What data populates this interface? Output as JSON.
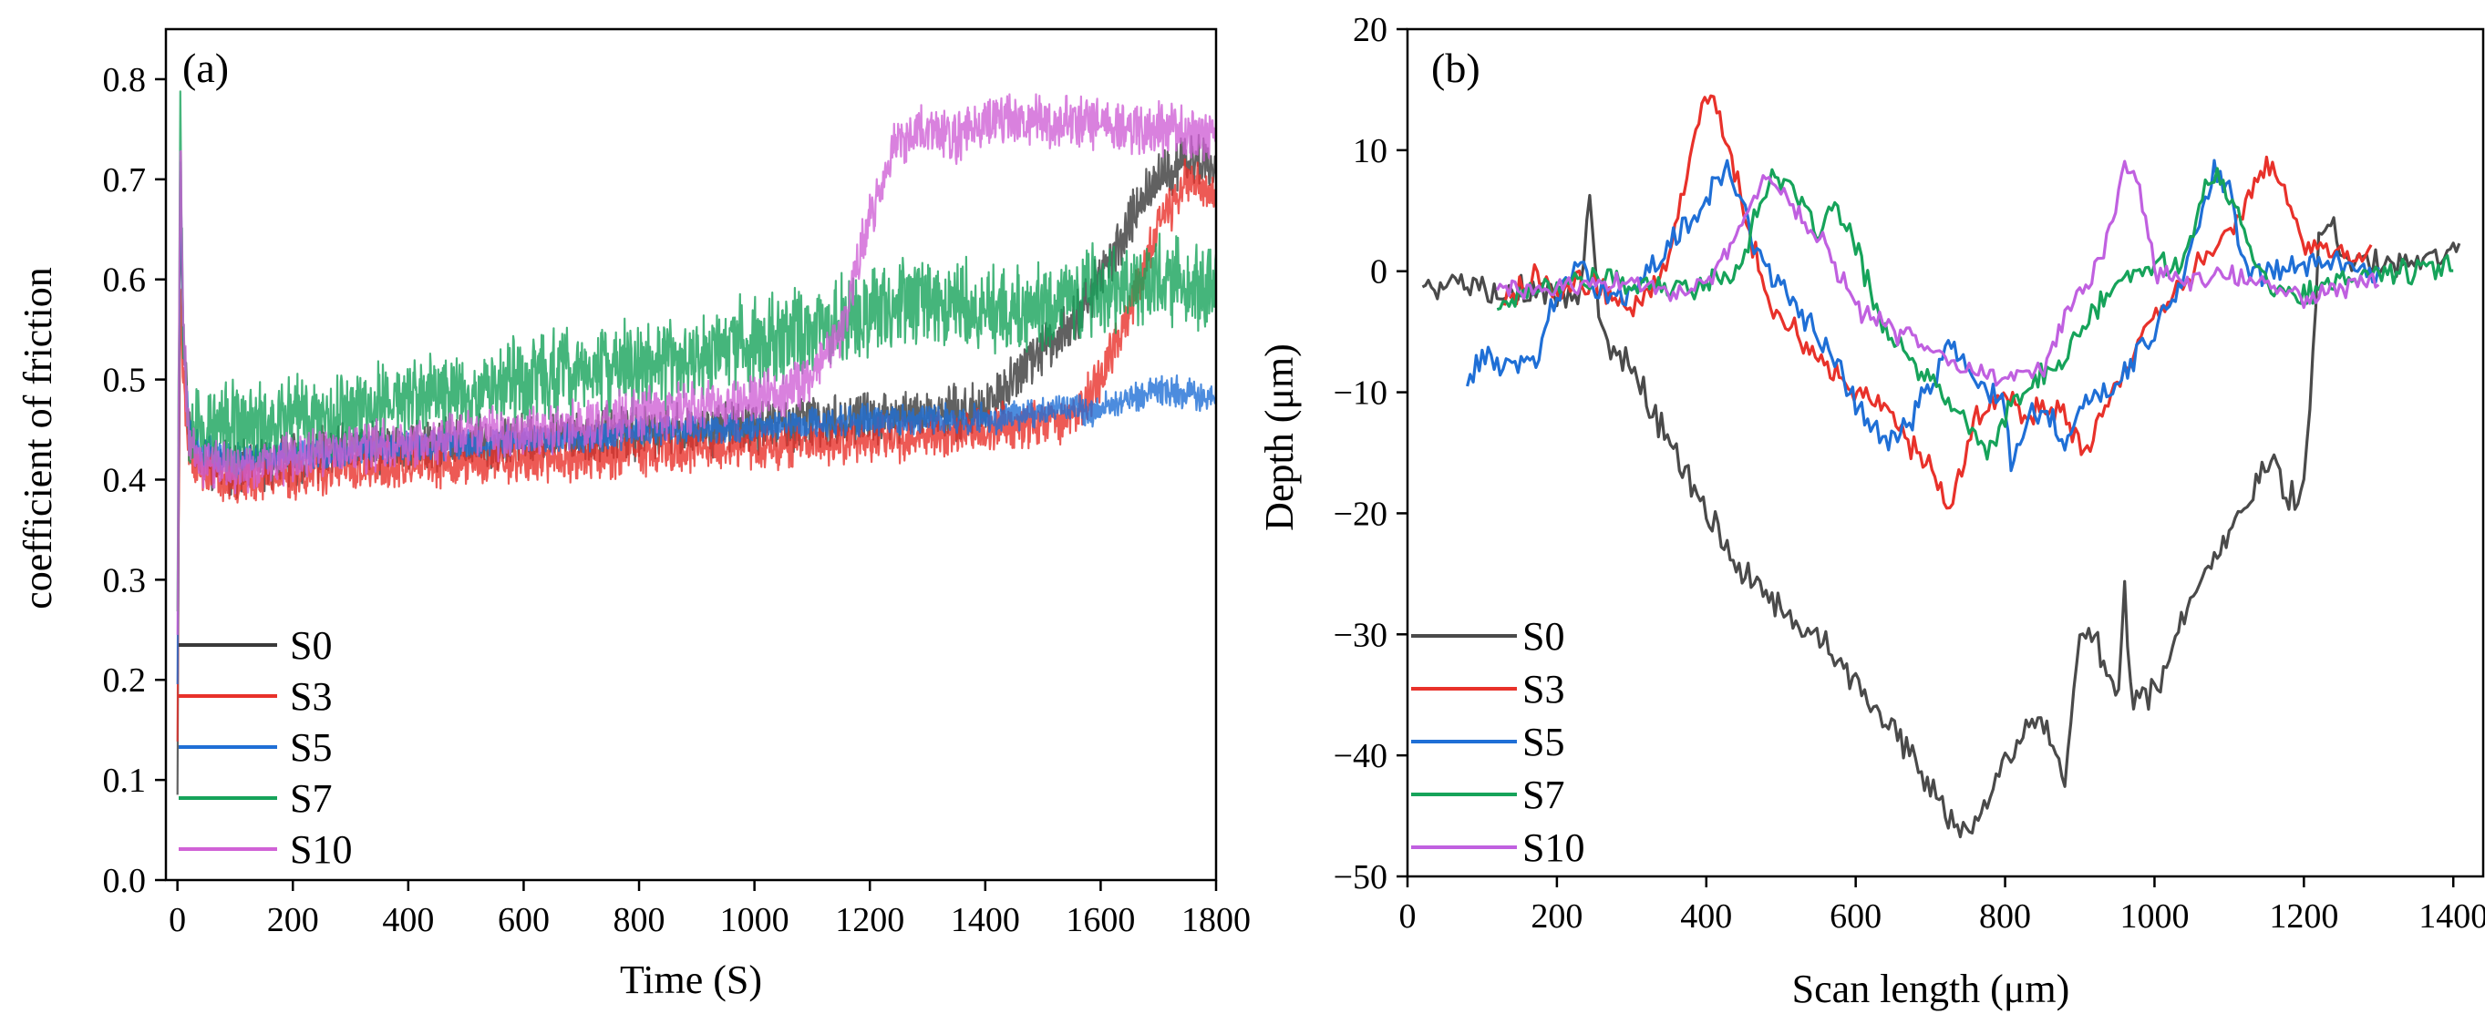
{
  "figure": {
    "panels": [
      "(a)",
      "(b)"
    ]
  },
  "chart_data": [
    {
      "type": "line",
      "panel": "(a)",
      "xlabel": "Time (S)",
      "ylabel": "coefficient of friction",
      "xlim": [
        -20,
        1800
      ],
      "ylim": [
        0.0,
        0.85
      ],
      "xticks": [
        0,
        200,
        400,
        600,
        800,
        1000,
        1200,
        1400,
        1600,
        1800
      ],
      "xtick_labels": [
        "0",
        "200",
        "400",
        "600",
        "800",
        "1000",
        "1200",
        "1400",
        "1600",
        "1800"
      ],
      "yticks": [
        0.0,
        0.1,
        0.2,
        0.3,
        0.4,
        0.5,
        0.6,
        0.7,
        0.8
      ],
      "ytick_labels": [
        "0.0",
        "0.1",
        "0.2",
        "0.3",
        "0.4",
        "0.5",
        "0.6",
        "0.7",
        "0.8"
      ],
      "legend_position": "bottom-left",
      "series": [
        {
          "name": "S0",
          "color": "#3a3a3a",
          "noise": 0.02,
          "seed": 11,
          "x": [
            0,
            5,
            10,
            20,
            40,
            100,
            300,
            600,
            900,
            1200,
            1400,
            1450,
            1500,
            1550,
            1600,
            1650,
            1700,
            1750,
            1800
          ],
          "y": [
            0.1,
            0.7,
            0.55,
            0.45,
            0.42,
            0.41,
            0.43,
            0.44,
            0.45,
            0.46,
            0.47,
            0.5,
            0.53,
            0.56,
            0.6,
            0.66,
            0.7,
            0.72,
            0.72
          ]
        },
        {
          "name": "S3",
          "color": "#e8312a",
          "noise": 0.018,
          "seed": 23,
          "x": [
            0,
            5,
            10,
            20,
            40,
            100,
            300,
            600,
            900,
            1200,
            1400,
            1500,
            1550,
            1600,
            1650,
            1700,
            1750,
            1800
          ],
          "y": [
            0.15,
            0.6,
            0.5,
            0.43,
            0.41,
            0.4,
            0.41,
            0.42,
            0.43,
            0.44,
            0.45,
            0.46,
            0.46,
            0.5,
            0.57,
            0.65,
            0.7,
            0.68
          ]
        },
        {
          "name": "S5",
          "color": "#1f6fd6",
          "noise": 0.012,
          "seed": 37,
          "x": [
            0,
            5,
            10,
            20,
            40,
            100,
            300,
            600,
            900,
            1200,
            1400,
            1500,
            1600,
            1700,
            1800
          ],
          "y": [
            0.2,
            0.72,
            0.55,
            0.45,
            0.43,
            0.42,
            0.43,
            0.44,
            0.45,
            0.46,
            0.46,
            0.47,
            0.47,
            0.49,
            0.48
          ]
        },
        {
          "name": "S7",
          "color": "#16a35a",
          "noise": 0.035,
          "seed": 53,
          "x": [
            0,
            5,
            10,
            20,
            40,
            100,
            300,
            600,
            900,
            1000,
            1100,
            1200,
            1300,
            1400,
            1500,
            1600,
            1700,
            1800
          ],
          "y": [
            0.3,
            0.78,
            0.55,
            0.46,
            0.45,
            0.45,
            0.47,
            0.5,
            0.52,
            0.54,
            0.55,
            0.57,
            0.58,
            0.57,
            0.57,
            0.59,
            0.6,
            0.59
          ]
        },
        {
          "name": "S10",
          "color": "#d062d6",
          "noise": 0.02,
          "seed": 71,
          "x": [
            0,
            5,
            10,
            20,
            40,
            100,
            300,
            600,
            900,
            1000,
            1100,
            1150,
            1200,
            1250,
            1300,
            1350,
            1400,
            1500,
            1600,
            1700,
            1800
          ],
          "y": [
            0.25,
            0.75,
            0.55,
            0.44,
            0.42,
            0.41,
            0.43,
            0.45,
            0.47,
            0.48,
            0.5,
            0.55,
            0.66,
            0.74,
            0.75,
            0.74,
            0.76,
            0.76,
            0.755,
            0.75,
            0.745
          ]
        }
      ]
    },
    {
      "type": "line",
      "panel": "(b)",
      "xlabel": "Scan length (μm)",
      "ylabel": "Depth (μm)",
      "xlim": [
        0,
        1440
      ],
      "ylim": [
        -50,
        20
      ],
      "xticks": [
        0,
        200,
        400,
        600,
        800,
        1000,
        1200,
        1400
      ],
      "xtick_labels": [
        "0",
        "200",
        "400",
        "600",
        "800",
        "1000",
        "1200",
        "1400"
      ],
      "yticks": [
        -50,
        -40,
        -30,
        -20,
        -10,
        0,
        10,
        20
      ],
      "ytick_labels": [
        "−50",
        "−40",
        "−30",
        "−20",
        "−10",
        "0",
        "10",
        "20"
      ],
      "legend_position": "bottom-left",
      "series": [
        {
          "name": "S0",
          "color": "#4a4a4a",
          "noise": 1.0,
          "seed": 5,
          "x": [
            20,
            100,
            180,
            230,
            245,
            255,
            270,
            300,
            350,
            400,
            450,
            500,
            550,
            600,
            650,
            700,
            740,
            760,
            800,
            850,
            880,
            900,
            920,
            950,
            960,
            970,
            1000,
            1050,
            1100,
            1140,
            1160,
            1180,
            1200,
            1210,
            1220,
            1230,
            1260,
            1300,
            1350,
            1410
          ],
          "y": [
            -1,
            -1.3,
            -1.8,
            -2,
            7,
            -3,
            -6,
            -8,
            -14,
            -20,
            -25,
            -28,
            -30,
            -34,
            -38,
            -43,
            -46,
            -46,
            -40,
            -37,
            -42,
            -30,
            -30,
            -36,
            -27,
            -36,
            -35,
            -27,
            -22,
            -17,
            -15,
            -19,
            -18,
            -10,
            3,
            4,
            1,
            0.5,
            1,
            2
          ]
        },
        {
          "name": "S3",
          "color": "#e8312a",
          "noise": 0.9,
          "seed": 9,
          "x": [
            130,
            150,
            170,
            200,
            230,
            260,
            290,
            320,
            350,
            380,
            400,
            420,
            450,
            480,
            520,
            560,
            600,
            640,
            680,
            710,
            725,
            760,
            800,
            830,
            860,
            890,
            910,
            950,
            1000,
            1050,
            1100,
            1130,
            1150,
            1170,
            1200,
            1230,
            1260,
            1290
          ],
          "y": [
            -2,
            -1.5,
            0,
            -2,
            -1,
            -1.5,
            -3,
            -2,
            1,
            10,
            15,
            13,
            5,
            -2,
            -5,
            -8,
            -10,
            -11,
            -15,
            -17,
            -20,
            -12,
            -10,
            -12,
            -11,
            -13,
            -15,
            -9,
            -4,
            0,
            3,
            7,
            9,
            7,
            2,
            2,
            1,
            1.5
          ]
        },
        {
          "name": "S5",
          "color": "#1f6fd6",
          "noise": 0.9,
          "seed": 13,
          "x": [
            80,
            100,
            140,
            170,
            200,
            230,
            260,
            300,
            350,
            400,
            430,
            450,
            480,
            520,
            560,
            600,
            640,
            670,
            700,
            730,
            760,
            800,
            810,
            830,
            860,
            880,
            900,
            950,
            1000,
            1040,
            1080,
            1100,
            1120,
            1150,
            1200,
            1250,
            1300
          ],
          "y": [
            -9,
            -7,
            -8,
            -7.5,
            -2,
            0,
            -1.5,
            -2,
            2,
            6,
            8.5,
            5,
            0,
            -3,
            -6,
            -11,
            -14,
            -13,
            -9,
            -6,
            -9,
            -11,
            -17,
            -12,
            -12,
            -15,
            -11,
            -9,
            -5,
            0,
            8,
            7,
            0,
            0,
            0.5,
            1,
            0
          ]
        },
        {
          "name": "S7",
          "color": "#16a35a",
          "noise": 0.8,
          "seed": 17,
          "x": [
            120,
            160,
            200,
            250,
            300,
            350,
            400,
            440,
            470,
            490,
            520,
            550,
            570,
            600,
            640,
            680,
            700,
            740,
            780,
            800,
            840,
            870,
            900,
            950,
            1000,
            1040,
            1070,
            1090,
            1120,
            1160,
            1200,
            1250,
            1300,
            1350,
            1400
          ],
          "y": [
            -3,
            -1.5,
            -1,
            -0.5,
            -1,
            -1.5,
            -1,
            0,
            5,
            8.5,
            6,
            3,
            5.5,
            2,
            -5,
            -8,
            -9,
            -12,
            -15,
            -12,
            -9,
            -8,
            -5,
            -1,
            0.5,
            1,
            7,
            8,
            3,
            -1.5,
            -2,
            -1,
            0,
            0,
            0.3
          ]
        },
        {
          "name": "S10",
          "color": "#c060e0",
          "noise": 0.7,
          "seed": 29,
          "x": [
            120,
            160,
            200,
            250,
            300,
            350,
            400,
            450,
            480,
            500,
            530,
            560,
            600,
            650,
            700,
            750,
            800,
            850,
            870,
            900,
            930,
            950,
            960,
            980,
            1000,
            1050,
            1100,
            1150,
            1200,
            1250,
            1300
          ],
          "y": [
            -1.5,
            -1.5,
            -1.5,
            -1,
            -1,
            -1.5,
            -1.5,
            4,
            8,
            7,
            4,
            2,
            -3,
            -5,
            -6,
            -8,
            -9,
            -8,
            -5,
            -2,
            1,
            6,
            9,
            7,
            0,
            -1,
            0,
            -1.5,
            -2,
            -1.5,
            -0.5
          ]
        }
      ]
    }
  ]
}
